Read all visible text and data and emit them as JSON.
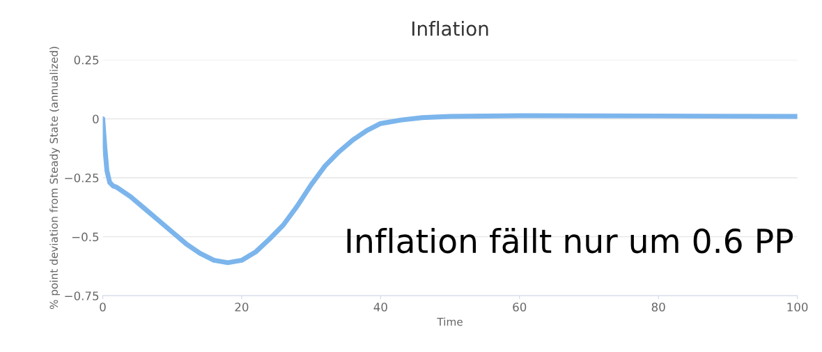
{
  "chart_data": {
    "type": "line",
    "title": "Inflation",
    "xlabel": "Time",
    "ylabel": "% point deviation from Steady State (annualized)",
    "annotations": [
      "Inflation fällt nur um 0.6 PP"
    ],
    "series": [
      {
        "color": "#7cb5ec",
        "x": [
          0,
          0.3,
          0.6,
          1,
          1.5,
          2,
          4,
          6,
          8,
          10,
          12,
          14,
          16,
          18,
          20,
          22,
          24,
          26,
          28,
          30,
          32,
          34,
          36,
          38,
          40,
          43,
          46,
          50,
          60,
          80,
          100
        ],
        "values": [
          0,
          -0.12,
          -0.22,
          -0.27,
          -0.285,
          -0.29,
          -0.33,
          -0.38,
          -0.43,
          -0.48,
          -0.53,
          -0.57,
          -0.6,
          -0.61,
          -0.6,
          -0.565,
          -0.51,
          -0.45,
          -0.37,
          -0.28,
          -0.2,
          -0.14,
          -0.09,
          -0.05,
          -0.02,
          -0.005,
          0.005,
          0.01,
          0.013,
          0.012,
          0.01
        ]
      }
    ],
    "xlim": [
      0,
      100
    ],
    "xticks": [
      0,
      20,
      40,
      60,
      80,
      100
    ],
    "ylim": [
      -0.75,
      0.25
    ],
    "yticks": [
      0.25,
      0,
      {
        "value": -0.25,
        "label": "−0.25"
      },
      {
        "value": -0.5,
        "label": "−0.5"
      },
      {
        "value": -0.75,
        "label": "−0.75"
      }
    ],
    "grid": "y",
    "marker": "none",
    "line_style": "solid"
  }
}
